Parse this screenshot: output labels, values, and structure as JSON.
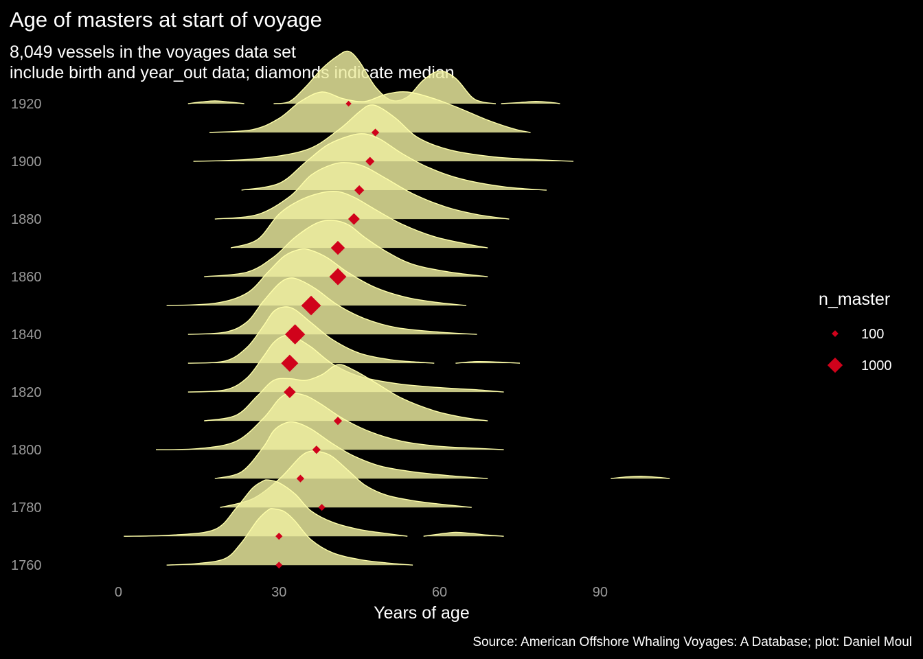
{
  "chart_data": {
    "type": "ridgeline",
    "title": "Age of masters at start of voyage",
    "subtitle_lines": [
      "8,049 vessels in the voyages data set",
      "include birth and year_out data; diamonds indicate median"
    ],
    "xlabel": "Years of age",
    "ylabel": "",
    "caption": "Source: American Offshore Whaling Voyages: A Database; plot: Daniel Moul",
    "xlim": [
      -17,
      128
    ],
    "x_ticks": [
      0,
      30,
      60,
      90
    ],
    "y_ticks": [
      1760,
      1780,
      1800,
      1820,
      1840,
      1860,
      1880,
      1900,
      1920
    ],
    "ylim": [
      1756,
      1925
    ],
    "colors": {
      "background": "#000000",
      "ridge_fill": "#eeeea0",
      "ridge_outline": "#ffffaa",
      "median_marker": "#d0021b"
    },
    "legend": {
      "title": "n_master",
      "placement": "right",
      "entries": [
        {
          "label": "100",
          "n": 100
        },
        {
          "label": "1000",
          "n": 1000
        }
      ]
    },
    "series": [
      {
        "decade": 1760,
        "median": 30,
        "n": 110,
        "ridges": [
          {
            "x": [
              9,
              15,
              20,
              23,
              26,
              28,
              29,
              31,
              33,
              36,
              40,
              45,
              50,
              55
            ],
            "d": [
              0,
              0.03,
              0.12,
              0.4,
              0.8,
              0.98,
              1,
              0.95,
              0.78,
              0.45,
              0.22,
              0.1,
              0.04,
              0
            ]
          }
        ]
      },
      {
        "decade": 1770,
        "median": 30,
        "n": 120,
        "ridges": [
          {
            "x": [
              1,
              10,
              18,
              22,
              25,
              27,
              28,
              30,
              33,
              36,
              40,
              45,
              50,
              54
            ],
            "d": [
              0,
              0.02,
              0.12,
              0.5,
              0.85,
              0.98,
              1,
              0.95,
              0.75,
              0.45,
              0.25,
              0.12,
              0.05,
              0
            ]
          },
          {
            "x": [
              57,
              60,
              63,
              66,
              69,
              72
            ],
            "d": [
              0,
              0.04,
              0.07,
              0.05,
              0.02,
              0
            ]
          }
        ]
      },
      {
        "decade": 1780,
        "median": 38,
        "n": 110,
        "ridges": [
          {
            "x": [
              19,
              25,
              30,
              34,
              36,
              38,
              40,
              43,
              46,
              50,
              55,
              60,
              66
            ],
            "d": [
              0,
              0.15,
              0.5,
              0.9,
              1,
              0.98,
              0.9,
              0.65,
              0.4,
              0.22,
              0.12,
              0.06,
              0
            ]
          }
        ]
      },
      {
        "decade": 1790,
        "median": 34,
        "n": 160,
        "ridges": [
          {
            "x": [
              18,
              23,
              27,
              29,
              31,
              33,
              36,
              40,
              44,
              49,
              55,
              62,
              69
            ],
            "d": [
              0,
              0.12,
              0.55,
              0.85,
              0.98,
              1,
              0.88,
              0.62,
              0.4,
              0.22,
              0.12,
              0.05,
              0
            ]
          },
          {
            "x": [
              92,
              95,
              98,
              101,
              103
            ],
            "d": [
              0,
              0.03,
              0.04,
              0.02,
              0
            ]
          }
        ]
      },
      {
        "decade": 1800,
        "median": 37,
        "n": 200,
        "ridges": [
          {
            "x": [
              7,
              15,
              22,
              27,
              30,
              32,
              35,
              38,
              42,
              47,
              53,
              60,
              66,
              72
            ],
            "d": [
              0,
              0.02,
              0.15,
              0.55,
              0.9,
              1,
              0.96,
              0.8,
              0.55,
              0.32,
              0.15,
              0.06,
              0.03,
              0
            ]
          }
        ]
      },
      {
        "decade": 1810,
        "median": 41,
        "n": 200,
        "ridges": [
          {
            "x": [
              16,
              22,
              26,
              29,
              32,
              35,
              38,
              41,
              44,
              48,
              53,
              59,
              64,
              69
            ],
            "d": [
              0,
              0.1,
              0.45,
              0.72,
              0.75,
              0.72,
              0.82,
              1,
              0.9,
              0.68,
              0.4,
              0.18,
              0.07,
              0
            ]
          }
        ]
      },
      {
        "decade": 1820,
        "median": 32,
        "n": 550,
        "ridges": [
          {
            "x": [
              13,
              20,
              24,
              27,
              29,
              31,
              33,
              36,
              40,
              45,
              52,
              60,
              67,
              72
            ],
            "d": [
              0,
              0.04,
              0.25,
              0.62,
              0.88,
              1,
              0.97,
              0.8,
              0.5,
              0.28,
              0.15,
              0.08,
              0.04,
              0
            ]
          }
        ]
      },
      {
        "decade": 1830,
        "median": 32,
        "n": 1300,
        "ridges": [
          {
            "x": [
              13,
              20,
              24,
              27,
              29,
              31,
              33,
              36,
              40,
              45,
              51,
              56,
              59
            ],
            "d": [
              0,
              0.04,
              0.28,
              0.65,
              0.92,
              1,
              0.95,
              0.72,
              0.42,
              0.18,
              0.06,
              0.02,
              0
            ]
          },
          {
            "x": [
              63,
              67,
              71,
              75
            ],
            "d": [
              0,
              0.03,
              0.02,
              0
            ]
          }
        ]
      },
      {
        "decade": 1840,
        "median": 33,
        "n": 1900,
        "ridges": [
          {
            "x": [
              13,
              20,
              24,
              27,
              30,
              32,
              34,
              37,
              41,
              46,
              52,
              60,
              67
            ],
            "d": [
              0,
              0.04,
              0.22,
              0.58,
              0.9,
              1,
              0.96,
              0.8,
              0.52,
              0.28,
              0.12,
              0.04,
              0
            ]
          }
        ]
      },
      {
        "decade": 1850,
        "median": 36,
        "n": 1800,
        "ridges": [
          {
            "x": [
              9,
              18,
              24,
              28,
              31,
              34,
              36,
              39,
              43,
              48,
              54,
              60,
              65
            ],
            "d": [
              0,
              0.04,
              0.22,
              0.6,
              0.88,
              1,
              0.98,
              0.85,
              0.58,
              0.32,
              0.14,
              0.05,
              0
            ]
          }
        ]
      },
      {
        "decade": 1860,
        "median": 41,
        "n": 1300,
        "ridges": [
          {
            "x": [
              16,
              24,
              29,
              33,
              37,
              40,
              43,
              46,
              50,
              55,
              62,
              69
            ],
            "d": [
              0,
              0.08,
              0.35,
              0.7,
              0.95,
              1,
              0.92,
              0.7,
              0.45,
              0.22,
              0.08,
              0
            ]
          }
        ]
      },
      {
        "decade": 1870,
        "median": 41,
        "n": 800,
        "ridges": [
          {
            "x": [
              21,
              26,
              30,
              34,
              38,
              41,
              44,
              48,
              53,
              59,
              65,
              69
            ],
            "d": [
              0,
              0.15,
              0.6,
              0.85,
              0.98,
              1,
              0.9,
              0.68,
              0.42,
              0.2,
              0.07,
              0
            ]
          }
        ]
      },
      {
        "decade": 1880,
        "median": 44,
        "n": 500,
        "ridges": [
          {
            "x": [
              18,
              26,
              32,
              36,
              40,
              43,
              46,
              50,
              55,
              61,
              67,
              73
            ],
            "d": [
              0,
              0.08,
              0.4,
              0.78,
              0.97,
              1,
              0.93,
              0.72,
              0.45,
              0.22,
              0.08,
              0
            ]
          }
        ]
      },
      {
        "decade": 1890,
        "median": 45,
        "n": 320,
        "ridges": [
          {
            "x": [
              23,
              30,
              35,
              39,
              43,
              46,
              49,
              53,
              58,
              64,
              72,
              80
            ],
            "d": [
              0,
              0.12,
              0.5,
              0.8,
              0.96,
              1,
              0.9,
              0.65,
              0.4,
              0.2,
              0.06,
              0
            ]
          }
        ]
      },
      {
        "decade": 1900,
        "median": 47,
        "n": 250,
        "ridges": [
          {
            "x": [
              14,
              25,
              35,
              41,
              45,
              47,
              49,
              52,
              56,
              62,
              70,
              78,
              85
            ],
            "d": [
              0,
              0.04,
              0.2,
              0.55,
              0.88,
              1,
              0.95,
              0.75,
              0.42,
              0.2,
              0.08,
              0.03,
              0
            ]
          }
        ]
      },
      {
        "decade": 1910,
        "median": 48,
        "n": 160,
        "ridges": [
          {
            "x": [
              17,
              25,
              30,
              34,
              38,
              42,
              46,
              50,
              54,
              59,
              64,
              69,
              74,
              77
            ],
            "d": [
              0,
              0.05,
              0.25,
              0.55,
              0.72,
              0.6,
              0.55,
              0.68,
              0.72,
              0.6,
              0.42,
              0.22,
              0.06,
              0
            ]
          }
        ]
      },
      {
        "decade": 1920,
        "median": 43,
        "n": 60,
        "ridges": [
          {
            "x": [
              13,
              15.5,
              18,
              20.5,
              23.5
            ],
            "d": [
              0,
              0.03,
              0.05,
              0.03,
              0
            ]
          },
          {
            "x": [
              29,
              32,
              35,
              38,
              41,
              43,
              45,
              48,
              51,
              54,
              57,
              60,
              63,
              66,
              68,
              70.5
            ],
            "d": [
              0,
              0.04,
              0.3,
              0.62,
              0.85,
              0.93,
              0.75,
              0.3,
              0.06,
              0.12,
              0.42,
              0.58,
              0.45,
              0.12,
              0.03,
              0
            ]
          },
          {
            "x": [
              71.5,
              75,
              78,
              81,
              82.5
            ],
            "d": [
              0,
              0.02,
              0.04,
              0.02,
              0
            ]
          }
        ]
      }
    ]
  }
}
